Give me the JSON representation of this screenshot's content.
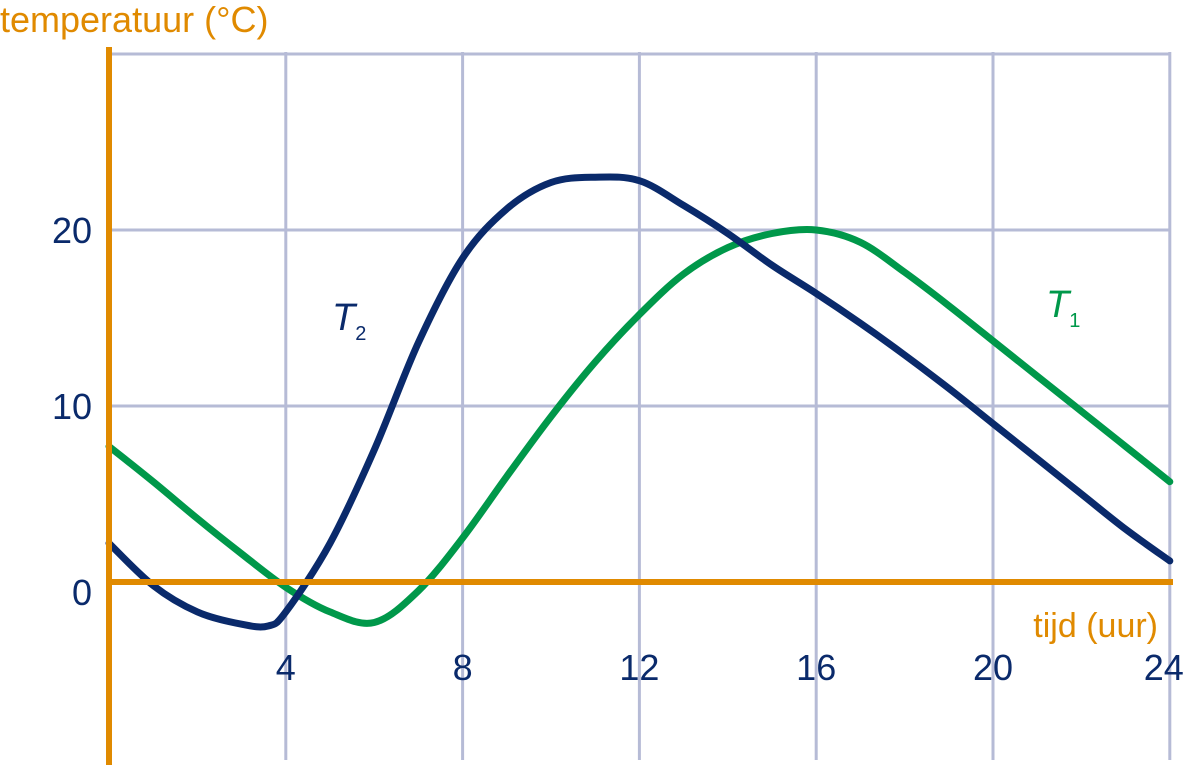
{
  "chart_data": {
    "type": "line",
    "ylabel": "temperatuur (°C)",
    "xlabel": "tijd (uur)",
    "xlim": [
      0,
      24
    ],
    "ylim": [
      -10,
      30
    ],
    "grid": true,
    "x_ticks": [
      4,
      8,
      12,
      16,
      20,
      24
    ],
    "y_ticks": [
      0,
      10,
      20
    ],
    "series": [
      {
        "name": "T1",
        "label_main": "T",
        "label_sub": "1",
        "color": "#00984a",
        "x": [
          0,
          1,
          2,
          3,
          4,
          5,
          6,
          7,
          8,
          9,
          10,
          11,
          12,
          13,
          14,
          15,
          16,
          17,
          18,
          19,
          20,
          21,
          22,
          23,
          24
        ],
        "y": [
          7.7,
          5.7,
          3.6,
          1.6,
          -0.3,
          -1.7,
          -2.3,
          -0.5,
          2.5,
          6.0,
          9.4,
          12.5,
          15.2,
          17.5,
          19.0,
          19.8,
          20.0,
          19.3,
          17.6,
          15.7,
          13.7,
          11.7,
          9.7,
          7.7,
          5.7
        ]
      },
      {
        "name": "T2",
        "label_main": "T",
        "label_sub": "2",
        "color": "#0a2a6b",
        "x": [
          0,
          1,
          2,
          3,
          3.6,
          4,
          5,
          6,
          7,
          8,
          9,
          10,
          11,
          12,
          13,
          14,
          15,
          16,
          17,
          18,
          19,
          20,
          21,
          22,
          23,
          24
        ],
        "y": [
          2.2,
          -0.2,
          -1.7,
          -2.4,
          -2.5,
          -1.7,
          2.2,
          7.5,
          13.6,
          18.4,
          21.2,
          22.7,
          23.0,
          22.8,
          21.4,
          19.8,
          18.0,
          16.4,
          14.7,
          12.9,
          11.0,
          9.0,
          7.0,
          5.0,
          3.0,
          1.2
        ]
      }
    ]
  }
}
